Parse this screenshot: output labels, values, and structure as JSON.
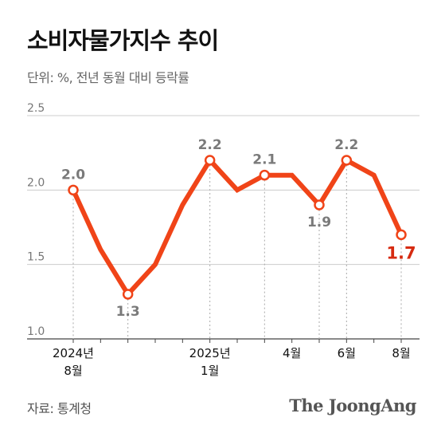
{
  "header": {
    "title": "소비자물가지수 추이",
    "subtitle": "단위: %, 전년 동월 대비 등락률"
  },
  "footer": {
    "source": "자료: 통계청",
    "brand": "The JoongAng"
  },
  "colors": {
    "line": "#f04418",
    "highlight": "#d62a10",
    "grid": "#cccccc"
  },
  "chart_data": {
    "type": "line",
    "title": "소비자물가지수 추이",
    "subtitle": "단위: %, 전년 동월 대비 등락률",
    "xlabel": "",
    "ylabel": "",
    "ylim": [
      1.0,
      2.5
    ],
    "yticks": [
      "1.0",
      "1.5",
      "2.0",
      "2.5"
    ],
    "grid": true,
    "legend": "none",
    "x": [
      "2024-08",
      "2024-09",
      "2024-10",
      "2024-11",
      "2024-12",
      "2025-01",
      "2025-02",
      "2025-03",
      "2025-04",
      "2025-05",
      "2025-06",
      "2025-07",
      "2025-08"
    ],
    "series": [
      {
        "values": [
          2.0,
          1.6,
          1.3,
          1.5,
          1.9,
          2.2,
          2.0,
          2.1,
          2.1,
          1.9,
          2.2,
          2.1,
          1.7
        ]
      }
    ],
    "tick_labels": [
      {
        "index": 0,
        "lines": [
          "2024년",
          "8월"
        ]
      },
      {
        "index": 5,
        "lines": [
          "2025년",
          "1월"
        ]
      },
      {
        "index": 8,
        "lines": [
          "4월"
        ]
      },
      {
        "index": 10,
        "lines": [
          "6월"
        ]
      },
      {
        "index": 12,
        "lines": [
          "8월"
        ]
      }
    ],
    "marked_points": [
      {
        "index": 0,
        "label": "2.0"
      },
      {
        "index": 2,
        "label": "1.3"
      },
      {
        "index": 5,
        "label": "2.2"
      },
      {
        "index": 7,
        "label": "2.1"
      },
      {
        "index": 9,
        "label": "1.9"
      },
      {
        "index": 10,
        "label": "2.2"
      },
      {
        "index": 12,
        "label": "1.7"
      }
    ]
  }
}
